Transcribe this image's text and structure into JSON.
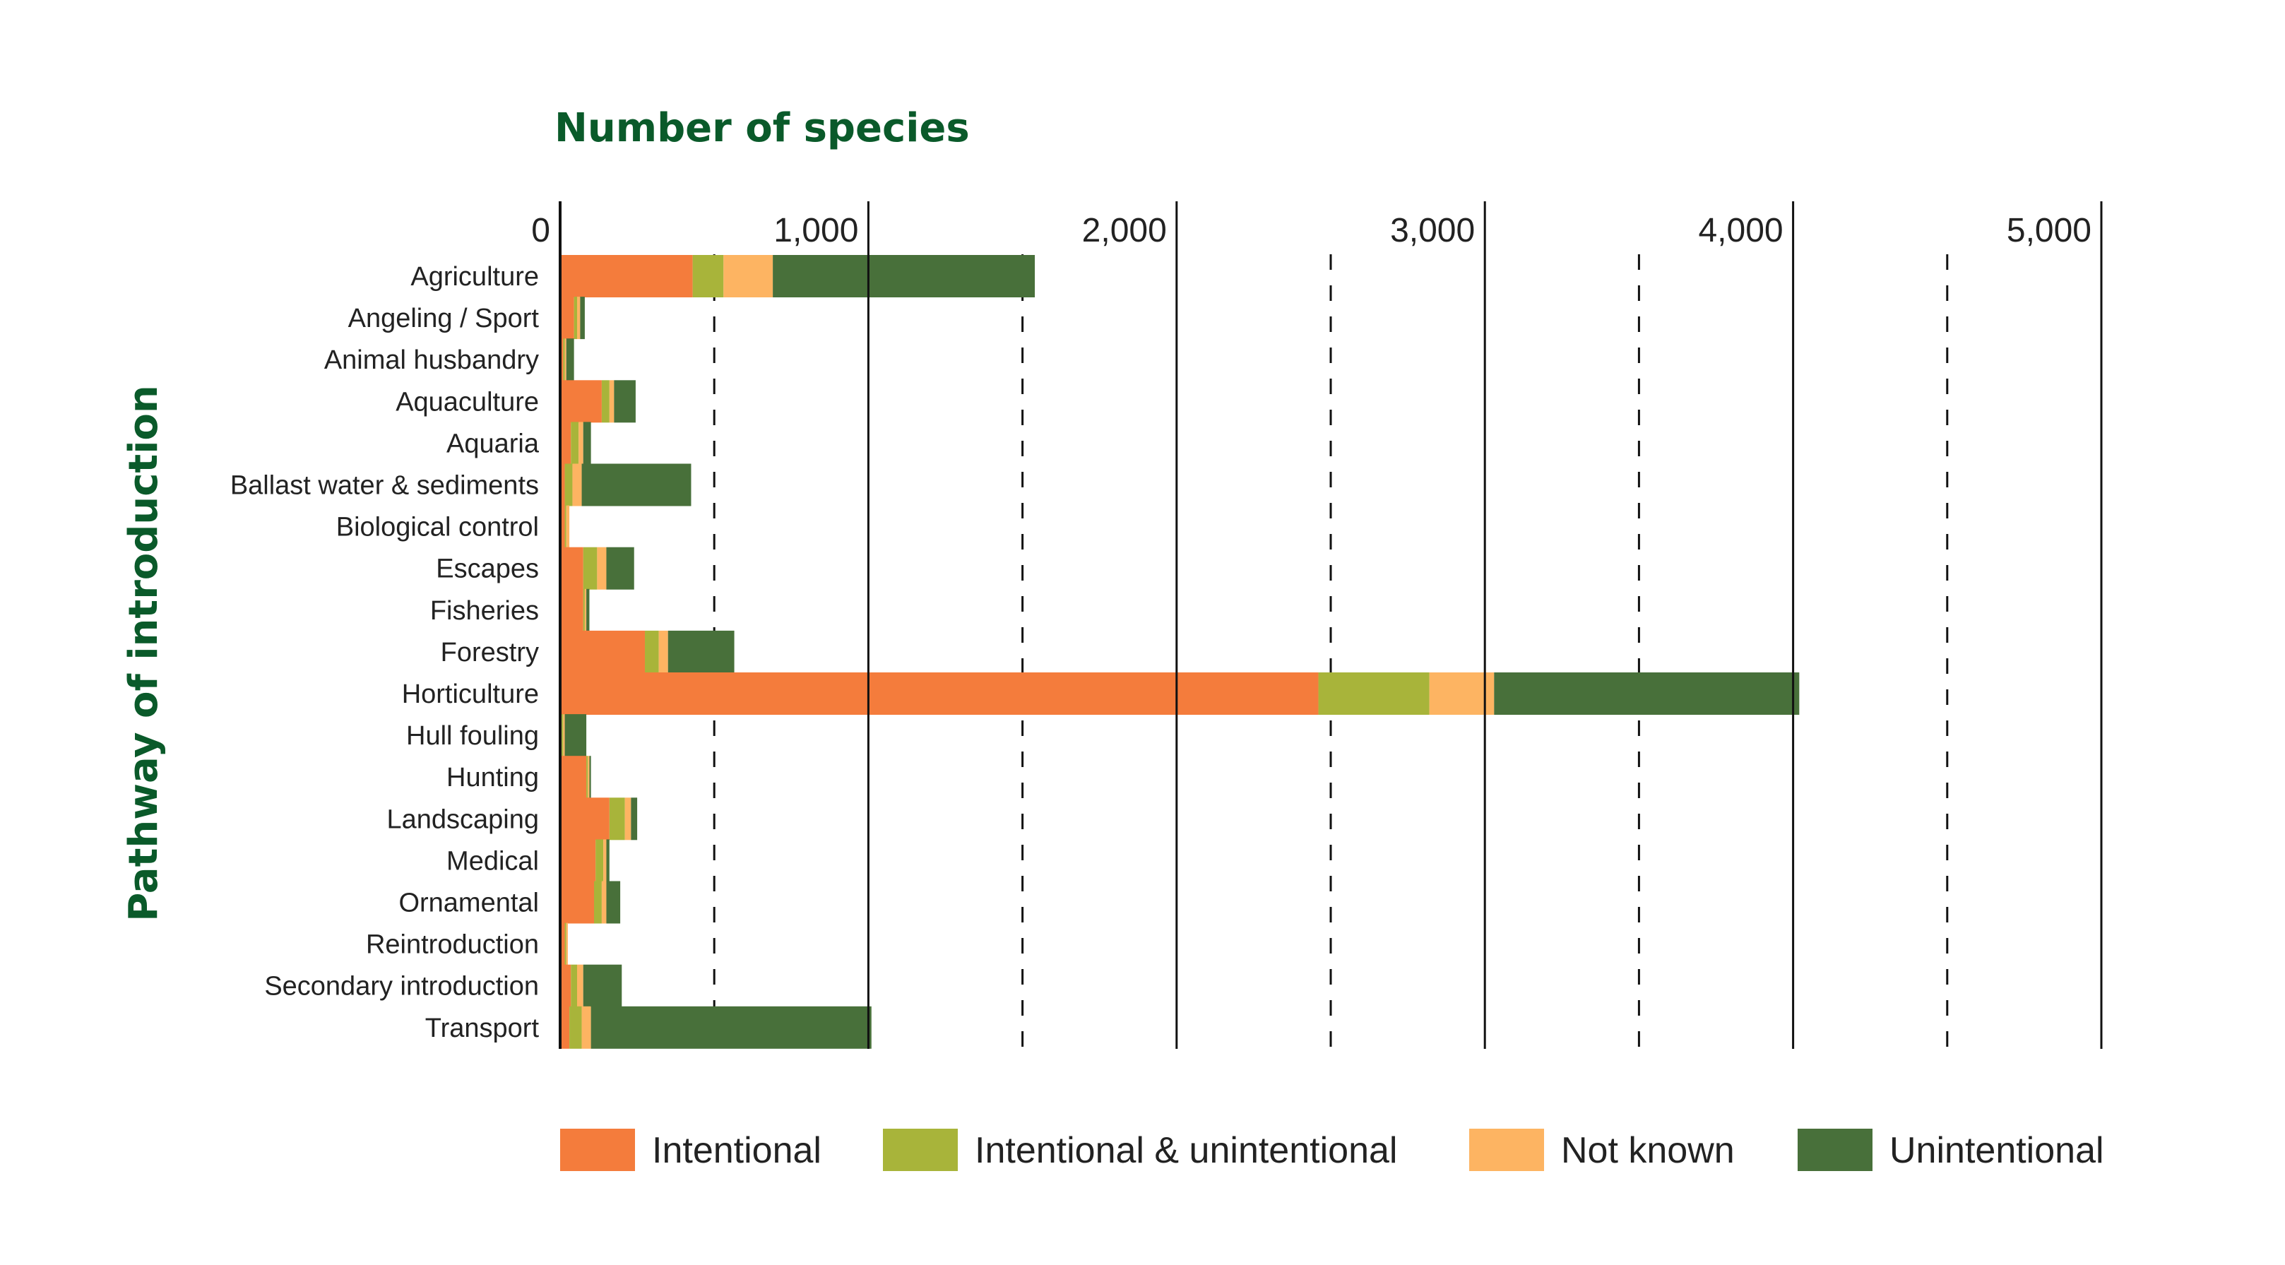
{
  "chart_data": {
    "type": "bar",
    "orientation": "horizontal",
    "stacked": true,
    "xlabel": "Number of species",
    "ylabel": "Pathway of introduction",
    "xlim": [
      0,
      5000
    ],
    "xticks": [
      0,
      1000,
      2000,
      3000,
      4000,
      5000
    ],
    "xtick_labels": [
      "0",
      "1,000",
      "2,000",
      "3,000",
      "4,000",
      "5,000"
    ],
    "solid_gridlines": [
      1000,
      2000,
      3000,
      4000,
      5000
    ],
    "dashed_gridlines": [
      500,
      1500,
      2500,
      3500,
      4500
    ],
    "legend_position": "bottom",
    "categories": [
      "Agriculture",
      "Angeling / Sport",
      "Animal husbandry",
      "Aquaculture",
      "Aquaria",
      "Ballast water & sediments",
      "Biological control",
      "Escapes",
      "Fisheries",
      "Forestry",
      "Horticulture",
      "Hull fouling",
      "Hunting",
      "Landscaping",
      "Medical",
      "Ornamental",
      "Reintroduction",
      "Secondary introduction",
      "Transport"
    ],
    "series": [
      {
        "name": "Intentional",
        "color": "#f47c3c",
        "values": [
          430,
          45,
          10,
          135,
          35,
          15,
          15,
          75,
          75,
          275,
          2460,
          5,
          85,
          160,
          115,
          110,
          15,
          35,
          30
        ]
      },
      {
        "name": "Intentional & unintentional",
        "color": "#a8b43a",
        "values": [
          100,
          10,
          5,
          25,
          25,
          25,
          5,
          45,
          5,
          45,
          360,
          5,
          5,
          50,
          25,
          25,
          5,
          20,
          40
        ]
      },
      {
        "name": "Not known",
        "color": "#fdb462",
        "values": [
          160,
          10,
          5,
          15,
          15,
          30,
          10,
          30,
          5,
          30,
          210,
          5,
          5,
          20,
          10,
          15,
          5,
          20,
          30
        ]
      },
      {
        "name": "Unintentional",
        "color": "#48703a",
        "values": [
          850,
          15,
          25,
          70,
          25,
          355,
          0,
          90,
          10,
          215,
          990,
          70,
          5,
          20,
          10,
          45,
          0,
          125,
          910
        ]
      }
    ]
  }
}
